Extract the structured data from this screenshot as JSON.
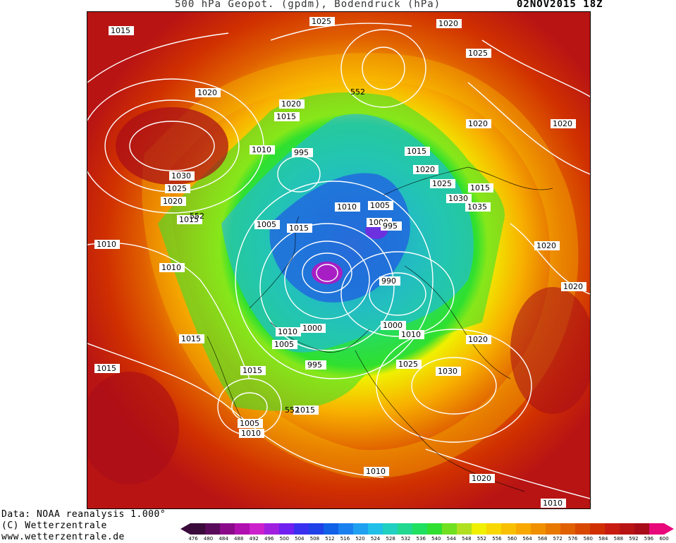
{
  "header": {
    "title": "500 hPa Geopot. (gpdm), Bodendruck (hPa)",
    "datetime": "02NOV2015 18Z"
  },
  "footer": {
    "data_source": "Data: NOAA reanalysis 1.000°",
    "copyright": "(C) Wetterzentrale",
    "url": "www.wetterzentrale.de"
  },
  "colorbar": {
    "ticks": [
      "476",
      "480",
      "484",
      "488",
      "492",
      "496",
      "500",
      "504",
      "508",
      "512",
      "516",
      "520",
      "524",
      "528",
      "532",
      "536",
      "540",
      "544",
      "548",
      "552",
      "556",
      "560",
      "564",
      "568",
      "572",
      "576",
      "580",
      "584",
      "588",
      "592",
      "596",
      "600"
    ],
    "colors": [
      "#3a0a3a",
      "#5a0a5a",
      "#8a0a8a",
      "#b010b0",
      "#cc20cc",
      "#a020e0",
      "#7020f0",
      "#3a30f0",
      "#2040e8",
      "#1060e8",
      "#1a80f0",
      "#20a0f0",
      "#20c0e8",
      "#20d0c0",
      "#20d890",
      "#20e060",
      "#30e030",
      "#70e020",
      "#b0e020",
      "#f0f000",
      "#f8d800",
      "#f8c000",
      "#f8a800",
      "#f09000",
      "#e87800",
      "#e06000",
      "#d84800",
      "#d03000",
      "#c81c10",
      "#b81414",
      "#a80c18",
      "#e8087a"
    ]
  },
  "isobar_labels": [
    "1015",
    "1025",
    "1020",
    "1025",
    "1020",
    "1020",
    "1020",
    "1020",
    "1015",
    "1010",
    "995",
    "1015",
    "1020",
    "1025",
    "1015",
    "1030",
    "1035",
    "1030",
    "1025",
    "1020",
    "1020",
    "1015",
    "1010",
    "1005",
    "1015",
    "1000",
    "995",
    "1010",
    "1005",
    "990",
    "1020",
    "1010",
    "1020",
    "1000",
    "1010",
    "1015",
    "1010",
    "1000",
    "1005",
    "1025",
    "1030",
    "995",
    "1015",
    "1015",
    "1005",
    "1010",
    "1010",
    "1015",
    "1020",
    "1010"
  ],
  "geopotential_labels": [
    "552",
    "552",
    "552"
  ],
  "map": {
    "background_color": "#b81414",
    "contour_color": "#ffffff",
    "coast_color": "#000000"
  }
}
